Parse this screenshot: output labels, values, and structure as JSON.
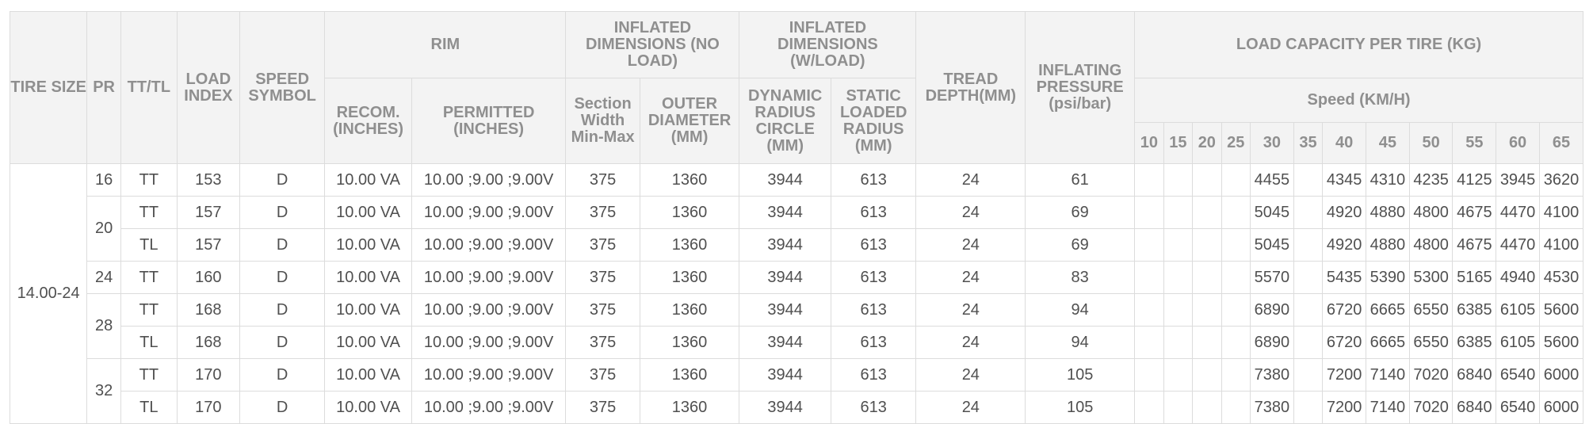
{
  "headers": {
    "tire_size": "TIRE SIZE",
    "pr": "PR",
    "tt_tl": "TT/TL",
    "load_index": "LOAD INDEX",
    "speed_symbol": "SPEED SYMBOL",
    "rim": "RIM",
    "rim_recom": "RECOM. (INCHES)",
    "rim_permitted": "PERMITTED (INCHES)",
    "inflated_no_load": "INFLATED DIMENSIONS (NO LOAD)",
    "section_width": "Section Width Min-Max",
    "outer_diameter": "OUTER DIAMETER (MM)",
    "inflated_w_load": "INFLATED DIMENSIONS (W/LOAD)",
    "dynamic_radius": "DYNAMIC RADIUS CIRCLE (MM)",
    "static_loaded": "STATIC LOADED RADIUS (MM)",
    "tread_depth": "TREAD DEPTH(MM)",
    "inflating_pressure": "INFLATING PRESSURE (psi/bar)",
    "load_capacity": "LOAD CAPACITY PER TIRE (KG)",
    "speed": "Speed (KM/H)",
    "speeds": [
      "10",
      "15",
      "20",
      "25",
      "30",
      "35",
      "40",
      "45",
      "50",
      "55",
      "60",
      "65"
    ]
  },
  "tire_size": "14.00-24",
  "pr_groups": [
    {
      "pr": "16",
      "rows": [
        {
          "tt": "TT",
          "li": "153",
          "ss": "D",
          "recom": "10.00 VA",
          "perm": "10.00 ;9.00 ;9.00V",
          "sw": "375",
          "od": "1360",
          "dr": "3944",
          "slr": "613",
          "td": "24",
          "ip": "61",
          "loads": [
            "",
            "",
            "",
            "",
            "4455",
            "",
            "4345",
            "4310",
            "4235",
            "4125",
            "3945",
            "3620"
          ]
        }
      ]
    },
    {
      "pr": "20",
      "rows": [
        {
          "tt": "TT",
          "li": "157",
          "ss": "D",
          "recom": "10.00 VA",
          "perm": "10.00 ;9.00 ;9.00V",
          "sw": "375",
          "od": "1360",
          "dr": "3944",
          "slr": "613",
          "td": "24",
          "ip": "69",
          "loads": [
            "",
            "",
            "",
            "",
            "5045",
            "",
            "4920",
            "4880",
            "4800",
            "4675",
            "4470",
            "4100"
          ]
        },
        {
          "tt": "TL",
          "li": "157",
          "ss": "D",
          "recom": "10.00 VA",
          "perm": "10.00 ;9.00 ;9.00V",
          "sw": "375",
          "od": "1360",
          "dr": "3944",
          "slr": "613",
          "td": "24",
          "ip": "69",
          "loads": [
            "",
            "",
            "",
            "",
            "5045",
            "",
            "4920",
            "4880",
            "4800",
            "4675",
            "4470",
            "4100"
          ]
        }
      ]
    },
    {
      "pr": "24",
      "rows": [
        {
          "tt": "TT",
          "li": "160",
          "ss": "D",
          "recom": "10.00 VA",
          "perm": "10.00 ;9.00 ;9.00V",
          "sw": "375",
          "od": "1360",
          "dr": "3944",
          "slr": "613",
          "td": "24",
          "ip": "83",
          "loads": [
            "",
            "",
            "",
            "",
            "5570",
            "",
            "5435",
            "5390",
            "5300",
            "5165",
            "4940",
            "4530"
          ]
        }
      ]
    },
    {
      "pr": "28",
      "rows": [
        {
          "tt": "TT",
          "li": "168",
          "ss": "D",
          "recom": "10.00 VA",
          "perm": "10.00 ;9.00 ;9.00V",
          "sw": "375",
          "od": "1360",
          "dr": "3944",
          "slr": "613",
          "td": "24",
          "ip": "94",
          "loads": [
            "",
            "",
            "",
            "",
            "6890",
            "",
            "6720",
            "6665",
            "6550",
            "6385",
            "6105",
            "5600"
          ]
        },
        {
          "tt": "TL",
          "li": "168",
          "ss": "D",
          "recom": "10.00 VA",
          "perm": "10.00 ;9.00 ;9.00V",
          "sw": "375",
          "od": "1360",
          "dr": "3944",
          "slr": "613",
          "td": "24",
          "ip": "94",
          "loads": [
            "",
            "",
            "",
            "",
            "6890",
            "",
            "6720",
            "6665",
            "6550",
            "6385",
            "6105",
            "5600"
          ]
        }
      ]
    },
    {
      "pr": "32",
      "rows": [
        {
          "tt": "TT",
          "li": "170",
          "ss": "D",
          "recom": "10.00 VA",
          "perm": "10.00 ;9.00 ;9.00V",
          "sw": "375",
          "od": "1360",
          "dr": "3944",
          "slr": "613",
          "td": "24",
          "ip": "105",
          "loads": [
            "",
            "",
            "",
            "",
            "7380",
            "",
            "7200",
            "7140",
            "7020",
            "6840",
            "6540",
            "6000"
          ]
        },
        {
          "tt": "TL",
          "li": "170",
          "ss": "D",
          "recom": "10.00 VA",
          "perm": "10.00 ;9.00 ;9.00V",
          "sw": "375",
          "od": "1360",
          "dr": "3944",
          "slr": "613",
          "td": "24",
          "ip": "105",
          "loads": [
            "",
            "",
            "",
            "",
            "7380",
            "",
            "7200",
            "7140",
            "7020",
            "6840",
            "6540",
            "6000"
          ]
        }
      ]
    }
  ]
}
